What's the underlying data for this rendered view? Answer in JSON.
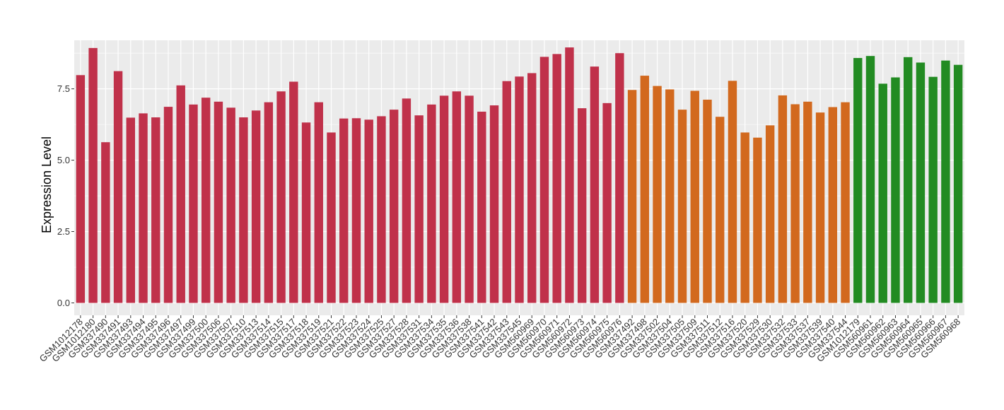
{
  "chart_data": {
    "type": "bar",
    "ylabel": "Expression Level",
    "xlabel": "",
    "ylim": [
      0,
      9.2
    ],
    "yticks": [
      0.0,
      2.5,
      5.0,
      7.5
    ],
    "ytick_labels": [
      "0.0",
      "2.5",
      "5.0",
      "7.5"
    ],
    "grid": true,
    "legend": "none",
    "categories": [
      "GSM1012178",
      "GSM1012180",
      "GSM337490",
      "GSM337491",
      "GSM337493",
      "GSM337494",
      "GSM337495",
      "GSM337496",
      "GSM337497",
      "GSM337499",
      "GSM337500",
      "GSM337506",
      "GSM337507",
      "GSM337510",
      "GSM337513",
      "GSM337514",
      "GSM337515",
      "GSM337517",
      "GSM337518",
      "GSM337519",
      "GSM337521",
      "GSM337522",
      "GSM337523",
      "GSM337524",
      "GSM337525",
      "GSM337527",
      "GSM337528",
      "GSM337531",
      "GSM337534",
      "GSM337535",
      "GSM337536",
      "GSM337538",
      "GSM337541",
      "GSM337542",
      "GSM337543",
      "GSM337545",
      "GSM560969",
      "GSM560970",
      "GSM560971",
      "GSM560972",
      "GSM560973",
      "GSM560974",
      "GSM560975",
      "GSM560976",
      "GSM337492",
      "GSM337498",
      "GSM337502",
      "GSM337504",
      "GSM337505",
      "GSM337509",
      "GSM337511",
      "GSM337512",
      "GSM337516",
      "GSM337520",
      "GSM337529",
      "GSM337530",
      "GSM337532",
      "GSM337533",
      "GSM337537",
      "GSM337539",
      "GSM337540",
      "GSM337544",
      "GSM1012179",
      "GSM560961",
      "GSM560962",
      "GSM560963",
      "GSM560964",
      "GSM560965",
      "GSM560966",
      "GSM560967",
      "GSM560968"
    ],
    "values": [
      7.98,
      8.93,
      5.63,
      8.12,
      6.49,
      6.64,
      6.5,
      6.87,
      7.62,
      6.95,
      7.19,
      7.05,
      6.84,
      6.5,
      6.74,
      7.03,
      7.41,
      7.75,
      6.32,
      7.03,
      5.97,
      6.46,
      6.47,
      6.42,
      6.54,
      6.77,
      7.16,
      6.57,
      6.95,
      7.26,
      7.41,
      7.26,
      6.7,
      6.92,
      7.77,
      7.93,
      8.05,
      8.62,
      8.72,
      8.95,
      6.82,
      8.28,
      7.0,
      8.75,
      7.46,
      7.96,
      7.6,
      7.48,
      6.77,
      7.43,
      7.12,
      6.52,
      7.78,
      5.97,
      5.79,
      6.22,
      7.27,
      6.96,
      7.05,
      6.67,
      6.86,
      7.03,
      8.58,
      8.65,
      7.68,
      7.9,
      8.61,
      8.42,
      7.92,
      8.49,
      8.34
    ],
    "group_sizes": [
      44,
      18,
      9
    ],
    "colors": [
      "#c0314a",
      "#d2691e",
      "#228b22"
    ],
    "background": "#ebebeb",
    "gridline_color": "#ffffff"
  }
}
